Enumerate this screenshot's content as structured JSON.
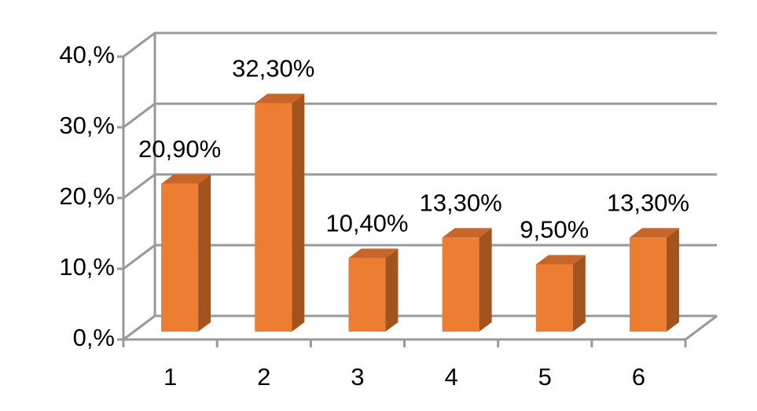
{
  "chart_data": {
    "type": "bar3d",
    "categories": [
      "1",
      "2",
      "3",
      "4",
      "5",
      "6"
    ],
    "values": [
      20.9,
      32.3,
      10.4,
      13.3,
      9.5,
      13.3
    ],
    "value_labels": [
      "20,90%",
      "32,30%",
      "10,40%",
      "13,30%",
      "9,50%",
      "13,30%"
    ],
    "color": "#ed7d31",
    "ylim": [
      0,
      40
    ],
    "yticks": [
      {
        "value": 0,
        "label": "0,%"
      },
      {
        "value": 10,
        "label": "10,%"
      },
      {
        "value": 20,
        "label": "20,%"
      },
      {
        "value": 30,
        "label": "30,%"
      },
      {
        "value": 40,
        "label": "40,%"
      }
    ],
    "grid": true
  }
}
